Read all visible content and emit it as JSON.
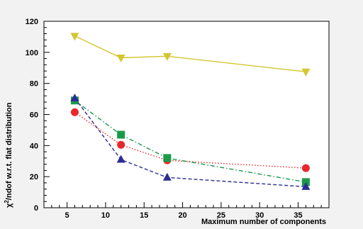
{
  "chart_data": {
    "type": "line",
    "title": "",
    "xlabel": "Maximum number of components",
    "ylabel_main": "χ",
    "ylabel_sup": "2",
    "ylabel_rest": "/ndof w.r.t. flat distribution",
    "xlim": [
      2,
      39
    ],
    "ylim": [
      0,
      120
    ],
    "xticks_major": [
      5,
      10,
      15,
      20,
      25,
      30,
      35
    ],
    "yticks_major": [
      0,
      20,
      40,
      60,
      80,
      100,
      120
    ],
    "grid": false,
    "legend": "none",
    "series": [
      {
        "marker": "triangle-down",
        "color": "#d4c630",
        "line_style": "solid",
        "x": [
          6,
          12,
          18,
          36
        ],
        "y": [
          110.5,
          96.5,
          97.5,
          87.5
        ]
      },
      {
        "marker": "circle",
        "color": "#e8282a",
        "line_style": "dotted",
        "x": [
          6,
          12,
          18,
          36
        ],
        "y": [
          61.5,
          40.5,
          30.5,
          25.5
        ]
      },
      {
        "marker": "square",
        "color": "#1a9a4a",
        "line_style": "dash-dot",
        "x": [
          6,
          12,
          18,
          36
        ],
        "y": [
          69,
          47,
          32,
          16.5
        ]
      },
      {
        "marker": "triangle-up",
        "color": "#2c2c96",
        "line_style": "dashed",
        "x": [
          6,
          12,
          18,
          36
        ],
        "y": [
          70.5,
          31,
          19.5,
          13.5
        ]
      }
    ]
  }
}
